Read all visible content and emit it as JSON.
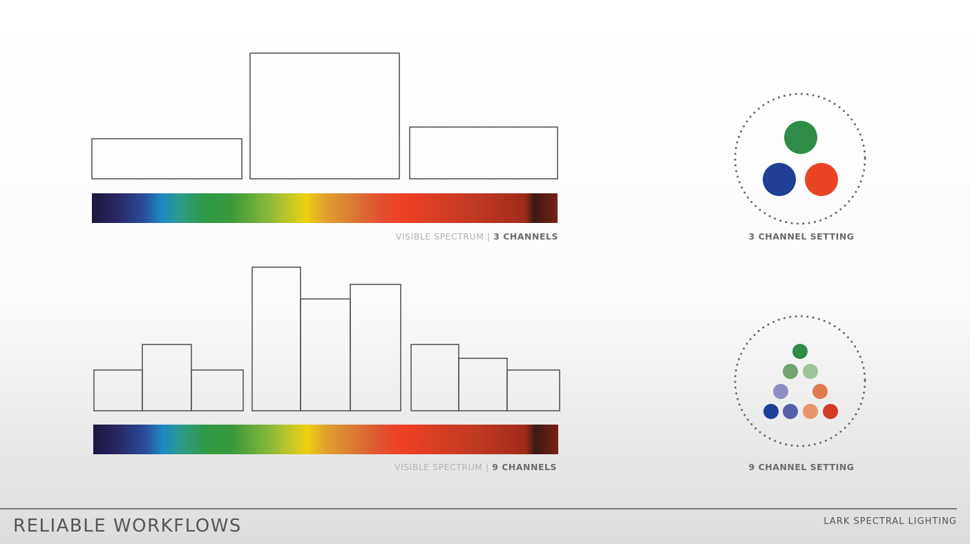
{
  "captions": [
    {
      "light": "VISIBLE SPECTRUM |",
      "bold": "3 CHANNELS"
    },
    {
      "light": "VISIBLE SPECTRUM |",
      "bold": "9 CHANNELS"
    }
  ],
  "settings": [
    "3 CHANNEL SETTING",
    "9 CHANNEL SETTING"
  ],
  "footer": {
    "title": "RELIABLE WORKFLOWS",
    "brand": "LARK SPECTRAL LIGHTING"
  }
}
